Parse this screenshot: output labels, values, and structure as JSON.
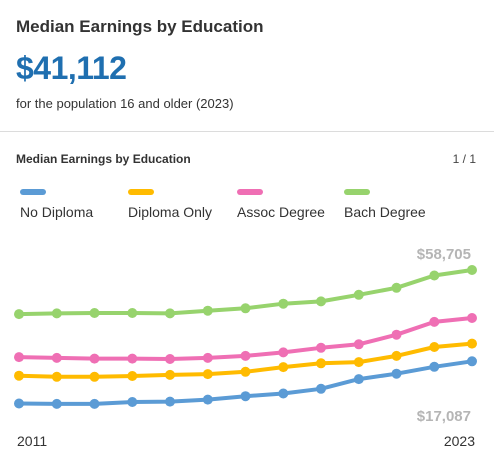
{
  "header": {
    "title": "Median Earnings by Education",
    "value": "$41,112",
    "subtitle": "for the population 16 and older (2023)"
  },
  "chart_header": {
    "title": "Median Earnings by Education",
    "pager": "1 / 1"
  },
  "colors": {
    "no_diploma": "#5b9bd5",
    "diploma_only": "#ffbb00",
    "assoc_degree": "#ef6fb4",
    "bach_degree": "#97d36d"
  },
  "chart_data": {
    "type": "line",
    "x": [
      2011,
      2012,
      2013,
      2014,
      2015,
      2016,
      2017,
      2018,
      2019,
      2020,
      2021,
      2022,
      2023
    ],
    "x_tick_labels": [
      "2011",
      "2023"
    ],
    "y_labels": {
      "max": "$58,705",
      "min": "$17,087"
    },
    "ylim": [
      17087,
      58705
    ],
    "grid": false,
    "legend_position": "top",
    "series": [
      {
        "name": "No Diploma",
        "color": "#5b9bd5",
        "values": [
          22900,
          22800,
          22800,
          23300,
          23400,
          23900,
          24800,
          25500,
          26700,
          29200,
          30600,
          32400,
          33800
        ]
      },
      {
        "name": "Diploma Only",
        "color": "#ffbb00",
        "values": [
          30100,
          29800,
          29800,
          30000,
          30300,
          30500,
          31100,
          32300,
          33300,
          33600,
          35200,
          37500,
          38400
        ]
      },
      {
        "name": "Assoc Degree",
        "color": "#ef6fb4",
        "values": [
          34900,
          34700,
          34500,
          34500,
          34400,
          34700,
          35200,
          36100,
          37300,
          38200,
          40700,
          44000,
          45000
        ]
      },
      {
        "name": "Bach Degree",
        "color": "#97d36d",
        "values": [
          46000,
          46200,
          46300,
          46300,
          46200,
          46900,
          47500,
          48700,
          49300,
          51000,
          52800,
          56000,
          57400
        ]
      }
    ]
  }
}
